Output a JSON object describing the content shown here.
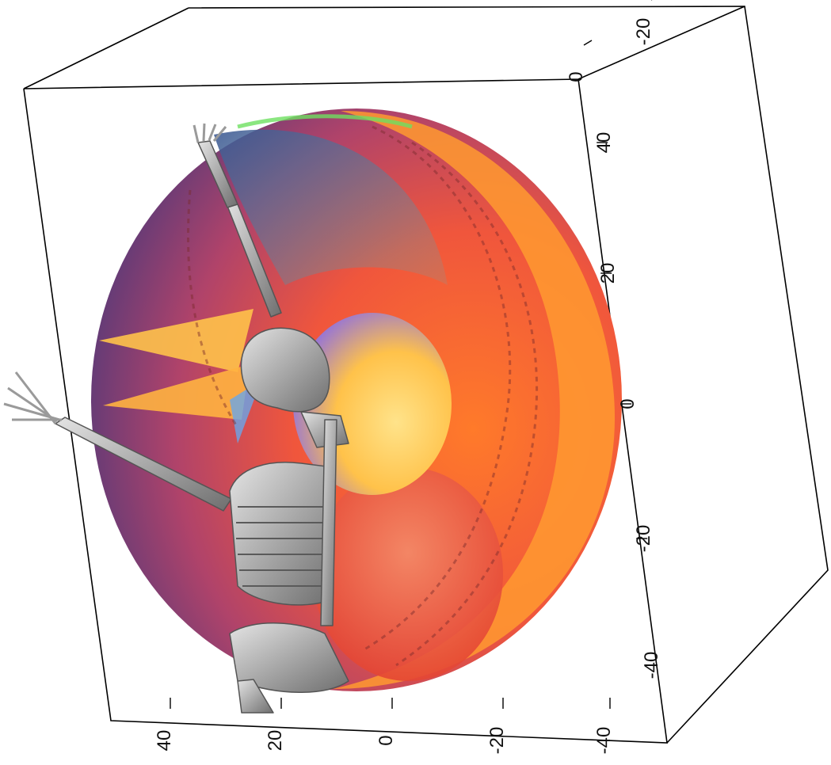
{
  "chart_data": {
    "type": "surface3d",
    "title": "",
    "xlabel": "",
    "ylabel": "",
    "zlabel": "",
    "grid": false,
    "box": true,
    "axes": [
      {
        "name": "right-axis",
        "ticks": [
          "0",
          "-20"
        ]
      },
      {
        "name": "vertical-axis",
        "ticks": [
          "40",
          "20",
          "0",
          "-20",
          "-40"
        ]
      },
      {
        "name": "bottom-axis",
        "ticks": [
          "40",
          "20",
          "0",
          "-20",
          "-40"
        ]
      }
    ],
    "surface": "nested-shells",
    "overlay": "skeleton",
    "colors": {
      "orange": "#ff8c2a",
      "deep_orange": "#f2582a",
      "yellow": "#ffd15a",
      "purple": "#6b3f82",
      "blue": "#4f6fa8",
      "skeleton": "#a9a9a9"
    }
  }
}
